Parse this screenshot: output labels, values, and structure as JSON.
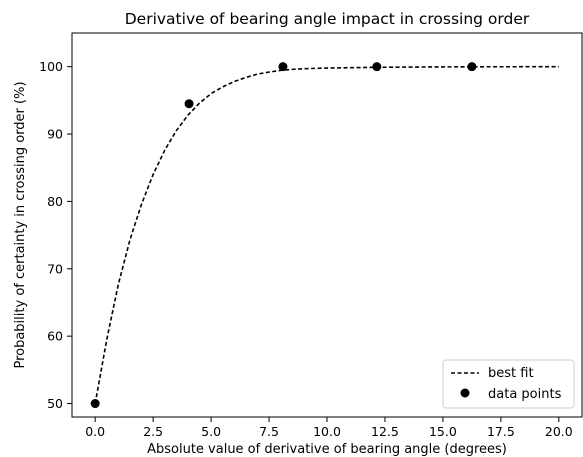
{
  "chart_data": {
    "type": "line",
    "title": "Derivative of bearing angle impact in crossing order",
    "xlabel": "Absolute value of derivative of bearing angle (degrees)",
    "ylabel": "Probability of certainty in crossing order (%)",
    "xlim": [
      -1.0,
      21.0
    ],
    "ylim": [
      48.0,
      105.0
    ],
    "xticks": [
      "0.0",
      "2.5",
      "5.0",
      "7.5",
      "10.0",
      "12.5",
      "15.0",
      "17.5",
      "20.0"
    ],
    "yticks": [
      "50",
      "60",
      "70",
      "80",
      "90",
      "100"
    ],
    "grid": false,
    "legend_position": "lower-right",
    "series": [
      {
        "name": "best fit",
        "style": "dashed",
        "color": "#000000",
        "x": [
          0,
          0.5,
          1,
          1.5,
          2,
          2.5,
          3,
          3.5,
          4,
          4.5,
          5,
          5.5,
          6,
          6.5,
          7,
          7.5,
          8,
          8.5,
          9,
          10,
          11,
          12,
          13,
          14,
          15,
          16,
          17,
          18,
          19,
          20
        ],
        "y": [
          50.0,
          59.5,
          67.7,
          74.3,
          79.6,
          84.0,
          87.6,
          90.5,
          92.8,
          94.6,
          96.0,
          97.0,
          97.8,
          98.4,
          98.9,
          99.2,
          99.45,
          99.6,
          99.7,
          99.8,
          99.85,
          99.9,
          99.93,
          99.95,
          99.97,
          99.98,
          99.99,
          99.99,
          100.0,
          100.0
        ]
      },
      {
        "name": "data points",
        "style": "markers",
        "color": "#000000",
        "x": [
          0.0,
          4.05,
          8.1,
          12.15,
          16.25
        ],
        "y": [
          50.0,
          94.5,
          100.0,
          100.0,
          100.0
        ]
      }
    ]
  }
}
